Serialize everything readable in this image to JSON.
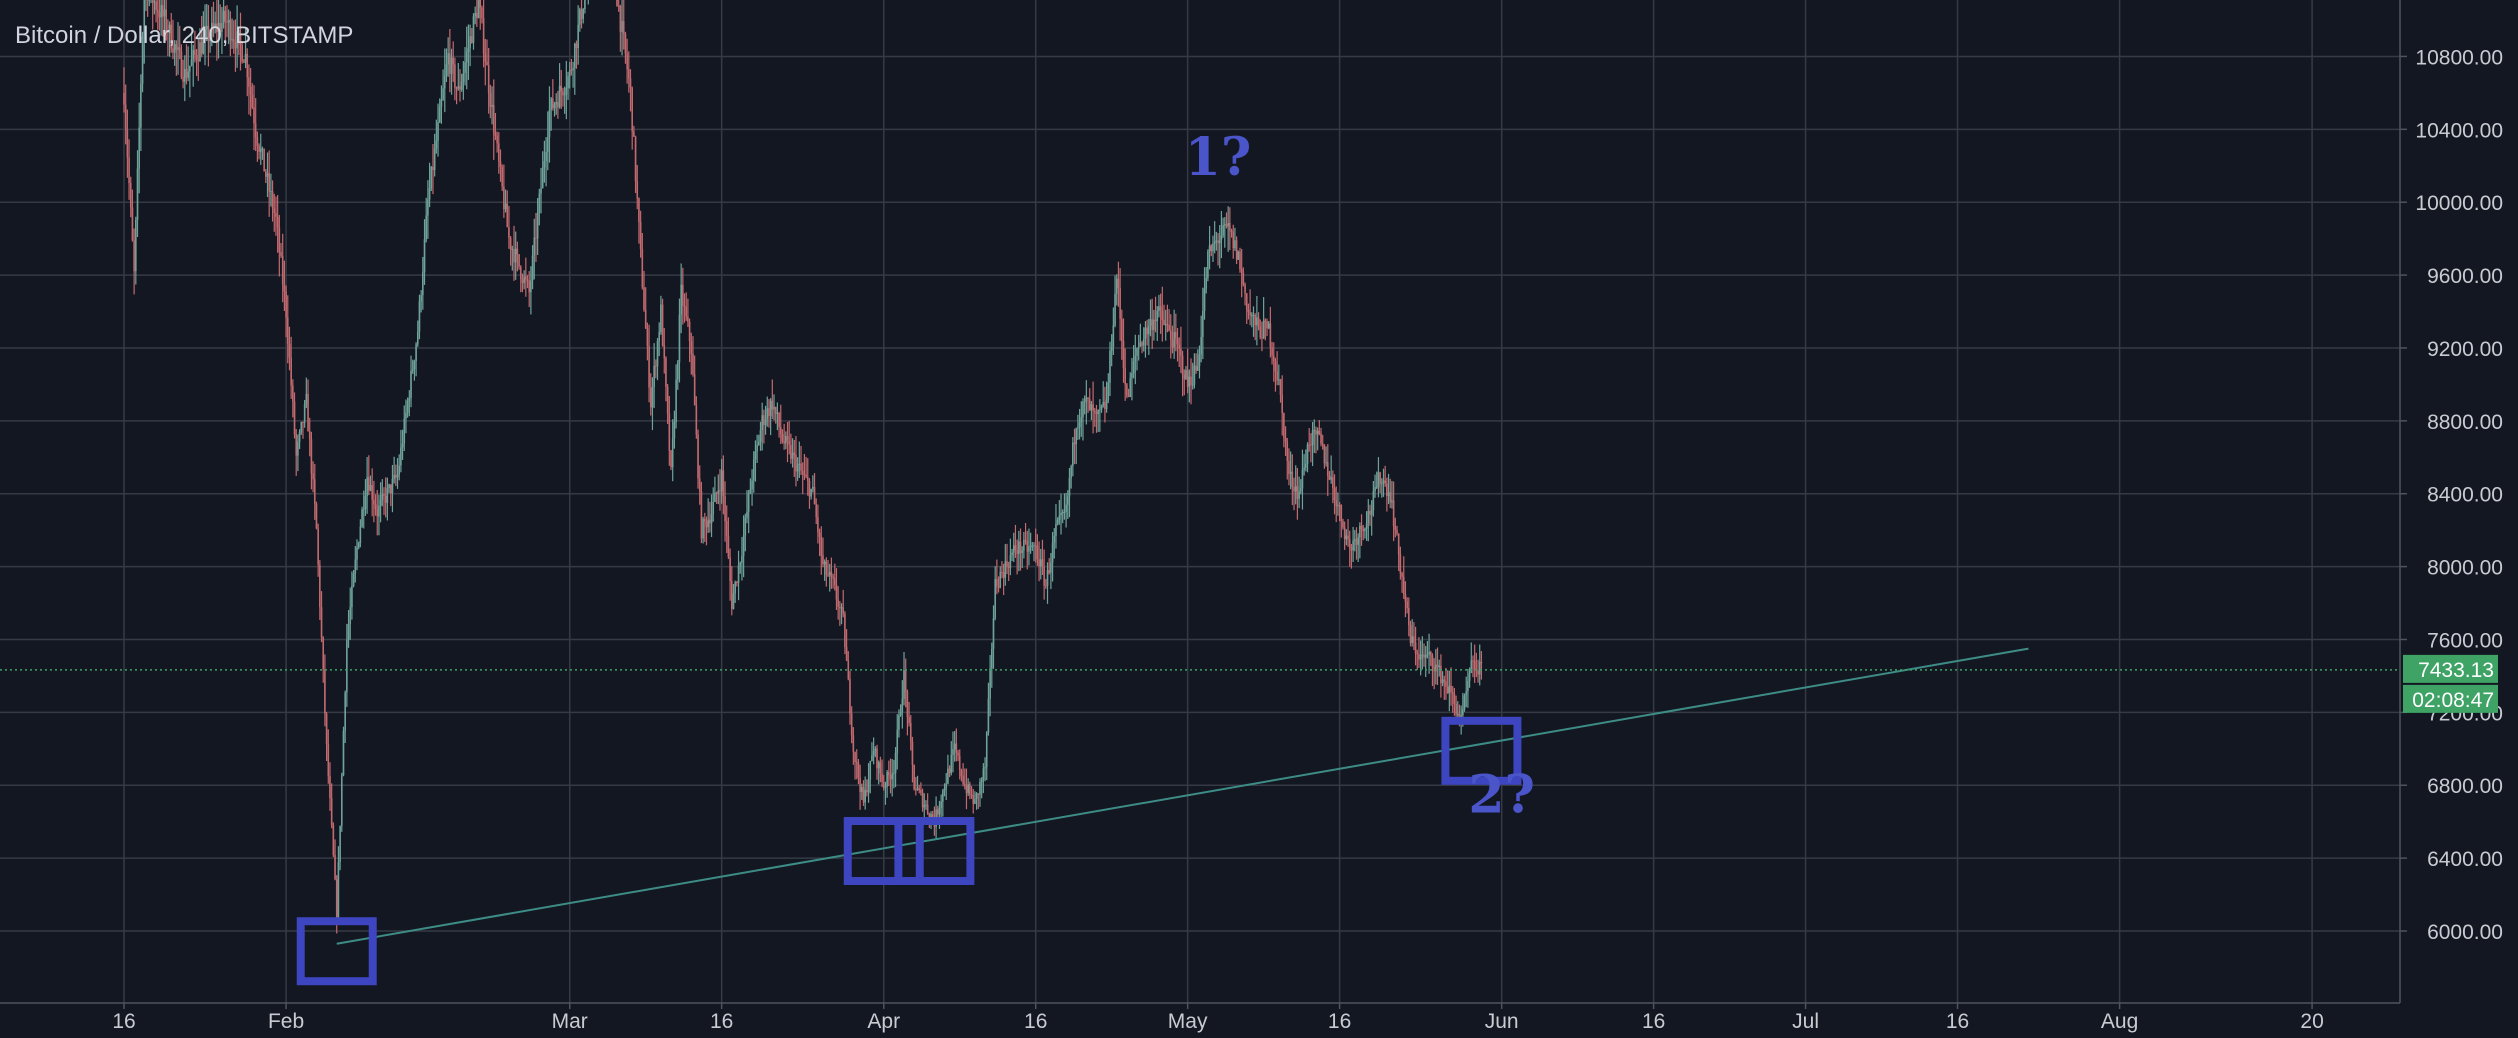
{
  "chart_data": {
    "type": "candlestick",
    "title": "Bitcoin / Dollar, 240, BITSTAMP",
    "symbol": "Bitcoin / Dollar",
    "interval": "240",
    "exchange": "BITSTAMP",
    "ylim": [
      5750,
      11000
    ],
    "y_ticks": [
      6000,
      6400,
      6800,
      7200,
      7600,
      8000,
      8400,
      8800,
      9200,
      9600,
      10000,
      10400,
      10800
    ],
    "x_tick_labels": [
      "16",
      "Feb",
      "Mar",
      "16",
      "Apr",
      "16",
      "May",
      "16",
      "Jun",
      "16",
      "Jul",
      "16",
      "Aug",
      "20"
    ],
    "grid": true,
    "current_price": "7433.13",
    "countdown": "02:08:47",
    "price_path": [
      [
        "2018-01-16",
        10600
      ],
      [
        "2018-01-17",
        9600
      ],
      [
        "2018-01-18",
        11200
      ],
      [
        "2018-01-20",
        11000
      ],
      [
        "2018-01-22",
        10700
      ],
      [
        "2018-01-24",
        10900
      ],
      [
        "2018-01-26",
        11000
      ],
      [
        "2018-01-28",
        10800
      ],
      [
        "2018-01-29",
        10400
      ],
      [
        "2018-01-31",
        9900
      ],
      [
        "2018-02-01",
        9400
      ],
      [
        "2018-02-02",
        8600
      ],
      [
        "2018-02-03",
        8900
      ],
      [
        "2018-02-04",
        8200
      ],
      [
        "2018-02-05",
        7000
      ],
      [
        "2018-02-06",
        6100
      ],
      [
        "2018-02-07",
        7600
      ],
      [
        "2018-02-08",
        8100
      ],
      [
        "2018-02-09",
        8500
      ],
      [
        "2018-02-10",
        8300
      ],
      [
        "2018-02-12",
        8500
      ],
      [
        "2018-02-14",
        9300
      ],
      [
        "2018-02-15",
        10000
      ],
      [
        "2018-02-17",
        10800
      ],
      [
        "2018-02-18",
        10600
      ],
      [
        "2018-02-20",
        11100
      ],
      [
        "2018-02-22",
        10200
      ],
      [
        "2018-02-23",
        9800
      ],
      [
        "2018-02-25",
        9500
      ],
      [
        "2018-02-27",
        10500
      ],
      [
        "2018-03-01",
        10700
      ],
      [
        "2018-03-03",
        11300
      ],
      [
        "2018-03-05",
        11400
      ],
      [
        "2018-03-07",
        10600
      ],
      [
        "2018-03-08",
        9700
      ],
      [
        "2018-03-09",
        8900
      ],
      [
        "2018-03-10",
        9400
      ],
      [
        "2018-03-11",
        8500
      ],
      [
        "2018-03-12",
        9500
      ],
      [
        "2018-03-13",
        9200
      ],
      [
        "2018-03-14",
        8200
      ],
      [
        "2018-03-15",
        8300
      ],
      [
        "2018-03-16",
        8500
      ],
      [
        "2018-03-17",
        7800
      ],
      [
        "2018-03-18",
        8100
      ],
      [
        "2018-03-19",
        8500
      ],
      [
        "2018-03-20",
        8800
      ],
      [
        "2018-03-21",
        8900
      ],
      [
        "2018-03-22",
        8700
      ],
      [
        "2018-03-23",
        8600
      ],
      [
        "2018-03-25",
        8400
      ],
      [
        "2018-03-26",
        8000
      ],
      [
        "2018-03-27",
        7900
      ],
      [
        "2018-03-28",
        7700
      ],
      [
        "2018-03-29",
        7000
      ],
      [
        "2018-03-30",
        6700
      ],
      [
        "2018-03-31",
        7000
      ],
      [
        "2018-04-01",
        6800
      ],
      [
        "2018-04-02",
        6900
      ],
      [
        "2018-04-03",
        7400
      ],
      [
        "2018-04-04",
        6800
      ],
      [
        "2018-04-06",
        6600
      ],
      [
        "2018-04-07",
        6800
      ],
      [
        "2018-04-08",
        7000
      ],
      [
        "2018-04-09",
        6800
      ],
      [
        "2018-04-10",
        6700
      ],
      [
        "2018-04-11",
        6900
      ],
      [
        "2018-04-12",
        7900
      ],
      [
        "2018-04-13",
        8000
      ],
      [
        "2018-04-14",
        8100
      ],
      [
        "2018-04-16",
        8100
      ],
      [
        "2018-04-17",
        7900
      ],
      [
        "2018-04-18",
        8200
      ],
      [
        "2018-04-19",
        8300
      ],
      [
        "2018-04-20",
        8800
      ],
      [
        "2018-04-21",
        8900
      ],
      [
        "2018-04-22",
        8800
      ],
      [
        "2018-04-23",
        8900
      ],
      [
        "2018-04-24",
        9600
      ],
      [
        "2018-04-25",
        8900
      ],
      [
        "2018-04-26",
        9200
      ],
      [
        "2018-04-27",
        9300
      ],
      [
        "2018-04-28",
        9400
      ],
      [
        "2018-04-29",
        9300
      ],
      [
        "2018-04-30",
        9200
      ],
      [
        "2018-05-01",
        9000
      ],
      [
        "2018-05-02",
        9100
      ],
      [
        "2018-05-03",
        9700
      ],
      [
        "2018-05-04",
        9800
      ],
      [
        "2018-05-05",
        9850
      ],
      [
        "2018-05-06",
        9700
      ],
      [
        "2018-05-07",
        9400
      ],
      [
        "2018-05-08",
        9300
      ],
      [
        "2018-05-09",
        9300
      ],
      [
        "2018-05-10",
        9000
      ],
      [
        "2018-05-11",
        8500
      ],
      [
        "2018-05-12",
        8400
      ],
      [
        "2018-05-13",
        8700
      ],
      [
        "2018-05-14",
        8700
      ],
      [
        "2018-05-15",
        8500
      ],
      [
        "2018-05-16",
        8300
      ],
      [
        "2018-05-17",
        8100
      ],
      [
        "2018-05-18",
        8200
      ],
      [
        "2018-05-19",
        8300
      ],
      [
        "2018-05-20",
        8500
      ],
      [
        "2018-05-21",
        8400
      ],
      [
        "2018-05-22",
        8000
      ],
      [
        "2018-05-23",
        7600
      ],
      [
        "2018-05-24",
        7500
      ],
      [
        "2018-05-25",
        7500
      ],
      [
        "2018-05-26",
        7400
      ],
      [
        "2018-05-27",
        7300
      ],
      [
        "2018-05-28",
        7150
      ],
      [
        "2018-05-29",
        7450
      ],
      [
        "2018-05-30",
        7433
      ]
    ],
    "trendline": {
      "start": [
        "2018-02-06",
        5930
      ],
      "end": [
        "2018-07-23",
        7550
      ]
    },
    "annotations": [
      {
        "text": "1?",
        "x": "2018-05-04",
        "y": 10150
      },
      {
        "text": "2?",
        "x": "2018-06-01",
        "y": 6650
      }
    ],
    "highlight_boxes": [
      {
        "date": "2018-02-06",
        "low": 5900
      },
      {
        "date": "2018-04-01",
        "low": 6450
      },
      {
        "date": "2018-04-06",
        "low": 6450
      },
      {
        "date": "2018-05-30",
        "low": 7000
      }
    ],
    "colors": {
      "background": "#131722",
      "grid": "#363a45",
      "up": "#6fa39a",
      "down": "#c36a6f",
      "trendline": "#3d8c86",
      "annotation": "#3d45c0",
      "price_tag": "#3ea365"
    }
  }
}
